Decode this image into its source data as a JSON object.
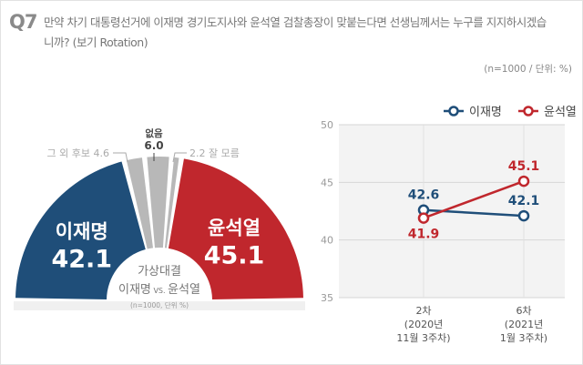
{
  "question": {
    "number": "Q7",
    "text": "만약 차기 대통령선거에 이재명 경기도지사와 윤석열 검찰총장이 맞붙는다면 선생님께서는 누구를 지지하시겠습니까? (보기 Rotation)",
    "note": "(n=1000 / 단위: %)"
  },
  "chart_data": [
    {
      "type": "pie",
      "shape": "half-donut",
      "center_title": "가상대결",
      "center_subtitle_a": "이재명",
      "center_vs": "VS.",
      "center_subtitle_b": "윤석열",
      "center_note": "(n=1000, 단위 %)",
      "slices": [
        {
          "label": "이재명",
          "value": 42.1,
          "value_text": "42.1",
          "color": "#1f4e79",
          "label_inside": true
        },
        {
          "label": "그 외 후보",
          "value": 4.6,
          "value_text": "4.6",
          "color": "#b8b8b8",
          "label_inside": false
        },
        {
          "label": "없음",
          "value": 6.0,
          "value_text": "6.0",
          "color": "#b8b8b8",
          "label_inside": false
        },
        {
          "label": "잘 모름",
          "value": 2.2,
          "value_text": "2.2",
          "color": "#b8b8b8",
          "label_inside": false
        },
        {
          "label": "윤석열",
          "value": 45.1,
          "value_text": "45.1",
          "color": "#c0272d",
          "label_inside": true
        }
      ]
    },
    {
      "type": "line",
      "categories": [
        "2차\n(2020년\n11월 3주차)",
        "6차\n(2021년\n1월 3주차)"
      ],
      "ylim": [
        35,
        50
      ],
      "yticks": [
        35,
        40,
        45,
        50
      ],
      "grid": true,
      "legend_position": "top-right",
      "series": [
        {
          "name": "이재명",
          "values": [
            42.6,
            42.1
          ],
          "color": "#1f4e79"
        },
        {
          "name": "윤석열",
          "values": [
            41.9,
            45.1
          ],
          "color": "#c0272d"
        }
      ]
    }
  ]
}
